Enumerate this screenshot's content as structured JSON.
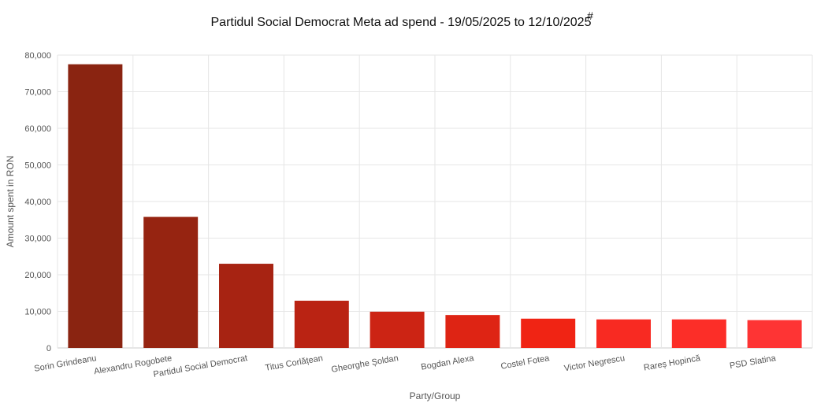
{
  "chart_data": {
    "type": "bar",
    "title": "Partidul Social Democrat Meta ad spend - 19/05/2025 to 12/10/2025",
    "title_mark": "#",
    "xlabel": "Party/Group",
    "ylabel": "Amount spent in RON",
    "ylim": [
      0,
      80000
    ],
    "yticks": [
      0,
      10000,
      20000,
      30000,
      40000,
      50000,
      60000,
      70000,
      80000
    ],
    "ytick_labels": [
      "0",
      "10,000",
      "20,000",
      "30,000",
      "40,000",
      "50,000",
      "60,000",
      "70,000",
      "80,000"
    ],
    "grid": true,
    "legend": "none",
    "categories": [
      "Sorin Grindeanu",
      "Alexandru Rogobete",
      "Partidul Social Democrat",
      "Titus Corlățean",
      "Gheorghe Șoldan",
      "Bogdan Alexa",
      "Costel Fotea",
      "Victor Negrescu",
      "Rareș Hopincă",
      "PSD Slatina"
    ],
    "values": [
      77500,
      35800,
      23000,
      12900,
      9900,
      9000,
      8000,
      7800,
      7800,
      7600
    ],
    "colors": [
      "#8a2411",
      "#962411",
      "#a72312",
      "#ba2313",
      "#cc2414",
      "#de2414",
      "#f02414",
      "#f82a22",
      "#fc2e28",
      "#fe3434"
    ]
  }
}
